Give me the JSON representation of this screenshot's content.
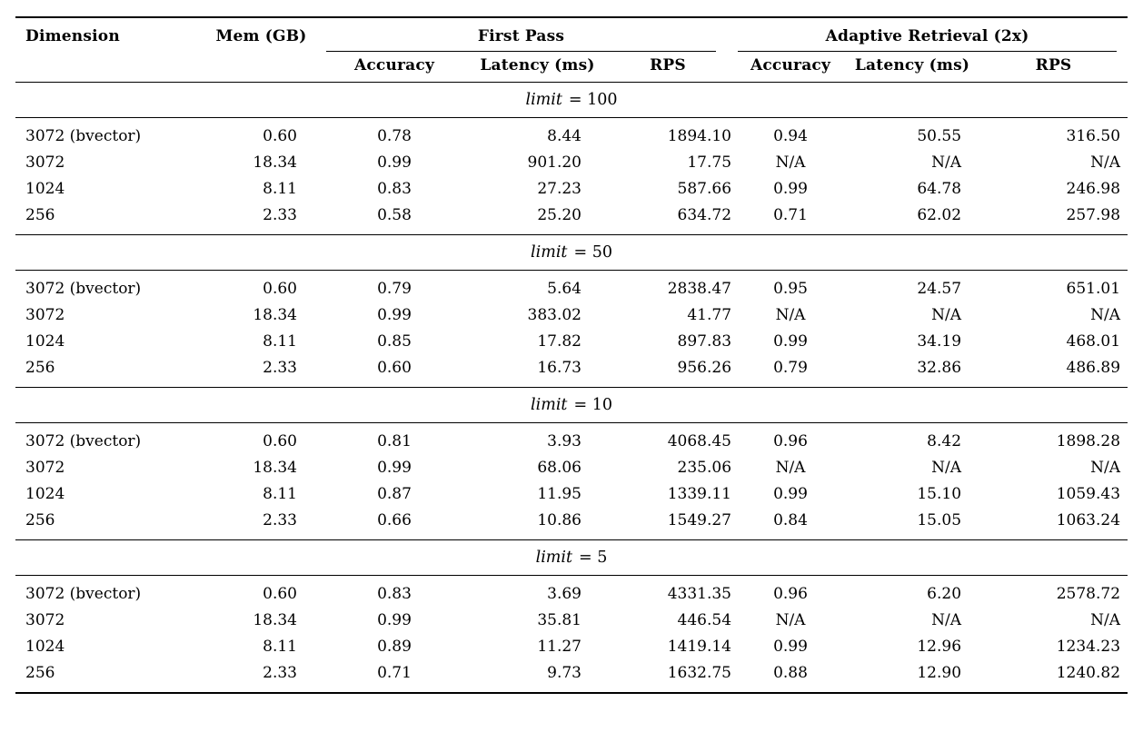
{
  "table": {
    "headers": {
      "dimension": "Dimension",
      "mem": "Mem (GB)",
      "group_first_pass": "First Pass",
      "group_adaptive": "Adaptive Retrieval (2x)",
      "sub": [
        "Accuracy",
        "Latency (ms)",
        "RPS",
        "Accuracy",
        "Latency (ms)",
        "RPS"
      ]
    },
    "sections": [
      {
        "label_var": "limit",
        "label_eq": "= 100",
        "rows": [
          [
            "3072 (bvector)",
            "0.60",
            "0.78",
            "8.44",
            "1894.10",
            "0.94",
            "50.55",
            "316.50"
          ],
          [
            "3072",
            "18.34",
            "0.99",
            "901.20",
            "17.75",
            "N/A",
            "N/A",
            "N/A"
          ],
          [
            "1024",
            "8.11",
            "0.83",
            "27.23",
            "587.66",
            "0.99",
            "64.78",
            "246.98"
          ],
          [
            "256",
            "2.33",
            "0.58",
            "25.20",
            "634.72",
            "0.71",
            "62.02",
            "257.98"
          ]
        ]
      },
      {
        "label_var": "limit",
        "label_eq": "= 50",
        "rows": [
          [
            "3072 (bvector)",
            "0.60",
            "0.79",
            "5.64",
            "2838.47",
            "0.95",
            "24.57",
            "651.01"
          ],
          [
            "3072",
            "18.34",
            "0.99",
            "383.02",
            "41.77",
            "N/A",
            "N/A",
            "N/A"
          ],
          [
            "1024",
            "8.11",
            "0.85",
            "17.82",
            "897.83",
            "0.99",
            "34.19",
            "468.01"
          ],
          [
            "256",
            "2.33",
            "0.60",
            "16.73",
            "956.26",
            "0.79",
            "32.86",
            "486.89"
          ]
        ]
      },
      {
        "label_var": "limit",
        "label_eq": "= 10",
        "rows": [
          [
            "3072 (bvector)",
            "0.60",
            "0.81",
            "3.93",
            "4068.45",
            "0.96",
            "8.42",
            "1898.28"
          ],
          [
            "3072",
            "18.34",
            "0.99",
            "68.06",
            "235.06",
            "N/A",
            "N/A",
            "N/A"
          ],
          [
            "1024",
            "8.11",
            "0.87",
            "11.95",
            "1339.11",
            "0.99",
            "15.10",
            "1059.43"
          ],
          [
            "256",
            "2.33",
            "0.66",
            "10.86",
            "1549.27",
            "0.84",
            "15.05",
            "1063.24"
          ]
        ]
      },
      {
        "label_var": "limit",
        "label_eq": "= 5",
        "rows": [
          [
            "3072 (bvector)",
            "0.60",
            "0.83",
            "3.69",
            "4331.35",
            "0.96",
            "6.20",
            "2578.72"
          ],
          [
            "3072",
            "18.34",
            "0.99",
            "35.81",
            "446.54",
            "N/A",
            "N/A",
            "N/A"
          ],
          [
            "1024",
            "8.11",
            "0.89",
            "11.27",
            "1419.14",
            "0.99",
            "12.96",
            "1234.23"
          ],
          [
            "256",
            "2.33",
            "0.71",
            "9.73",
            "1632.75",
            "0.88",
            "12.90",
            "1240.82"
          ]
        ]
      }
    ]
  }
}
